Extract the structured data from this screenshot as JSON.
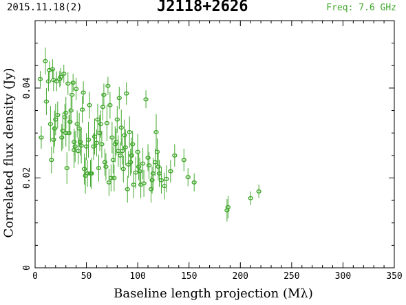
{
  "header": {
    "date": "2015.11.18(2)",
    "source": "J2118+2626",
    "freq": "Freq: 7.6 GHz"
  },
  "chart_data": {
    "type": "scatter",
    "xlabel": "Baseline length projection (Mλ)",
    "ylabel": "Correlated flux density (Jy)",
    "xlim": [
      0,
      350
    ],
    "ylim": [
      0,
      0.055
    ],
    "xticks": [
      0,
      50,
      100,
      150,
      200,
      250,
      300,
      350
    ],
    "yticks": [
      0,
      0.02,
      0.04
    ],
    "ytick_labels": [
      "0",
      "0.02",
      "0.04"
    ],
    "color": "#3fa62a",
    "points": [
      [
        5,
        0.042,
        0.0018
      ],
      [
        6,
        0.029,
        0.0025
      ],
      [
        10,
        0.046,
        0.003
      ],
      [
        11,
        0.037,
        0.003
      ],
      [
        13,
        0.0415,
        0.0022
      ],
      [
        14,
        0.044,
        0.002
      ],
      [
        15,
        0.032,
        0.004
      ],
      [
        16,
        0.024,
        0.003
      ],
      [
        17,
        0.0442,
        0.0022
      ],
      [
        18,
        0.0418,
        0.0025
      ],
      [
        18,
        0.0285,
        0.003
      ],
      [
        19,
        0.031,
        0.004
      ],
      [
        20,
        0.033,
        0.0035
      ],
      [
        21,
        0.0415,
        0.0022
      ],
      [
        22,
        0.034,
        0.003
      ],
      [
        24,
        0.042,
        0.0018
      ],
      [
        25,
        0.0425,
        0.002
      ],
      [
        26,
        0.029,
        0.003
      ],
      [
        27,
        0.0305,
        0.004
      ],
      [
        28,
        0.0432,
        0.002
      ],
      [
        29,
        0.0335,
        0.003
      ],
      [
        30,
        0.0345,
        0.0035
      ],
      [
        30,
        0.03,
        0.003
      ],
      [
        31,
        0.0222,
        0.0035
      ],
      [
        32,
        0.041,
        0.0025
      ],
      [
        33,
        0.03,
        0.004
      ],
      [
        34,
        0.0325,
        0.003
      ],
      [
        35,
        0.035,
        0.003
      ],
      [
        36,
        0.0385,
        0.003
      ],
      [
        37,
        0.0412,
        0.002
      ],
      [
        38,
        0.028,
        0.003
      ],
      [
        38,
        0.0262,
        0.004
      ],
      [
        39,
        0.027,
        0.0035
      ],
      [
        40,
        0.0398,
        0.0025
      ],
      [
        41,
        0.032,
        0.003
      ],
      [
        42,
        0.026,
        0.003
      ],
      [
        43,
        0.031,
        0.0035
      ],
      [
        44,
        0.028,
        0.003
      ],
      [
        45,
        0.0272,
        0.004
      ],
      [
        46,
        0.0352,
        0.003
      ],
      [
        47,
        0.039,
        0.0025
      ],
      [
        48,
        0.022,
        0.0035
      ],
      [
        49,
        0.0205,
        0.004
      ],
      [
        50,
        0.027,
        0.003
      ],
      [
        51,
        0.021,
        0.003
      ],
      [
        52,
        0.0285,
        0.004
      ],
      [
        53,
        0.0362,
        0.003
      ],
      [
        54,
        0.021,
        0.003
      ],
      [
        55,
        0.021,
        0.0035
      ],
      [
        57,
        0.027,
        0.003
      ],
      [
        58,
        0.0292,
        0.004
      ],
      [
        60,
        0.0278,
        0.003
      ],
      [
        61,
        0.033,
        0.0035
      ],
      [
        62,
        0.0222,
        0.003
      ],
      [
        63,
        0.03,
        0.004
      ],
      [
        64,
        0.032,
        0.003
      ],
      [
        65,
        0.0275,
        0.003
      ],
      [
        66,
        0.0358,
        0.003
      ],
      [
        67,
        0.0385,
        0.0025
      ],
      [
        68,
        0.0235,
        0.003
      ],
      [
        69,
        0.0225,
        0.003
      ],
      [
        70,
        0.0322,
        0.004
      ],
      [
        71,
        0.0405,
        0.002
      ],
      [
        72,
        0.019,
        0.003
      ],
      [
        73,
        0.0362,
        0.003
      ],
      [
        74,
        0.02,
        0.003
      ],
      [
        75,
        0.029,
        0.0035
      ],
      [
        76,
        0.024,
        0.003
      ],
      [
        77,
        0.02,
        0.003
      ],
      [
        78,
        0.0275,
        0.004
      ],
      [
        79,
        0.028,
        0.003
      ],
      [
        80,
        0.033,
        0.003
      ],
      [
        81,
        0.026,
        0.0035
      ],
      [
        82,
        0.0378,
        0.0025
      ],
      [
        83,
        0.025,
        0.003
      ],
      [
        84,
        0.0312,
        0.004
      ],
      [
        85,
        0.026,
        0.003
      ],
      [
        86,
        0.022,
        0.003
      ],
      [
        87,
        0.0295,
        0.0035
      ],
      [
        88,
        0.0268,
        0.004
      ],
      [
        89,
        0.0388,
        0.0025
      ],
      [
        90,
        0.0175,
        0.003
      ],
      [
        91,
        0.023,
        0.003
      ],
      [
        92,
        0.0302,
        0.0035
      ],
      [
        93,
        0.0235,
        0.003
      ],
      [
        94,
        0.025,
        0.004
      ],
      [
        95,
        0.0275,
        0.003
      ],
      [
        96,
        0.0185,
        0.003
      ],
      [
        98,
        0.0212,
        0.0035
      ],
      [
        100,
        0.0258,
        0.004
      ],
      [
        101,
        0.0225,
        0.003
      ],
      [
        102,
        0.0215,
        0.003
      ],
      [
        103,
        0.0185,
        0.003
      ],
      [
        105,
        0.0232,
        0.0035
      ],
      [
        106,
        0.0188,
        0.003
      ],
      [
        108,
        0.0375,
        0.002
      ],
      [
        110,
        0.0245,
        0.003
      ],
      [
        111,
        0.0228,
        0.003
      ],
      [
        113,
        0.0175,
        0.003
      ],
      [
        114,
        0.0195,
        0.003
      ],
      [
        115,
        0.021,
        0.0035
      ],
      [
        117,
        0.0235,
        0.003
      ],
      [
        118,
        0.0302,
        0.004
      ],
      [
        119,
        0.0258,
        0.003
      ],
      [
        120,
        0.0225,
        0.003
      ],
      [
        121,
        0.021,
        0.003
      ],
      [
        123,
        0.0195,
        0.003
      ],
      [
        126,
        0.0182,
        0.003
      ],
      [
        128,
        0.0198,
        0.003
      ],
      [
        132,
        0.0215,
        0.0025
      ],
      [
        136,
        0.025,
        0.0025
      ],
      [
        145,
        0.024,
        0.0025
      ],
      [
        149,
        0.0202,
        0.002
      ],
      [
        155,
        0.019,
        0.002
      ],
      [
        187,
        0.0128,
        0.0025
      ],
      [
        188,
        0.0135,
        0.0025
      ],
      [
        210,
        0.0155,
        0.0015
      ],
      [
        218,
        0.017,
        0.0015
      ]
    ]
  }
}
